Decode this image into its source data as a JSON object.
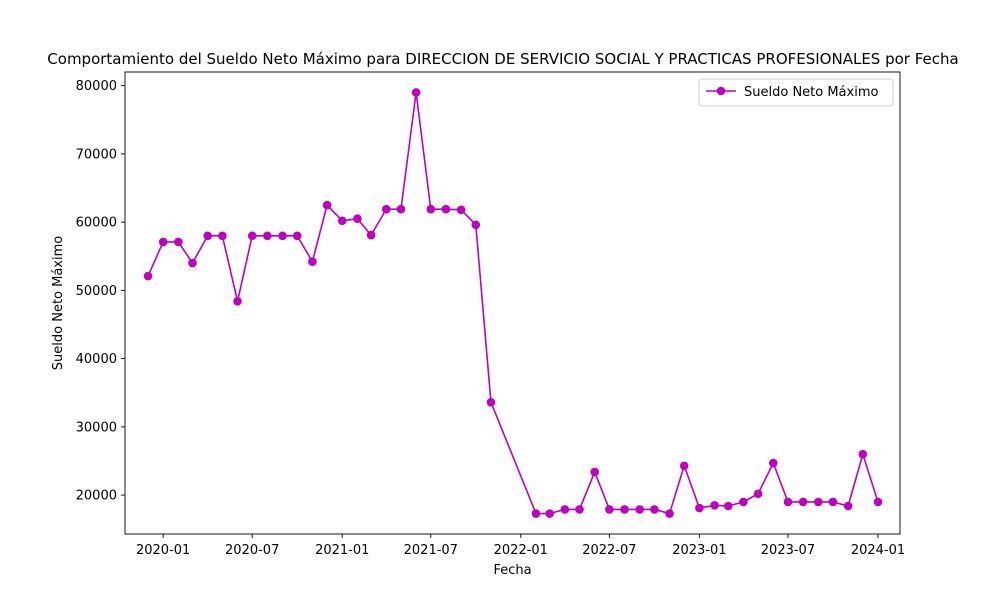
{
  "chart_data": {
    "type": "line",
    "title": "Comportamiento del Sueldo Neto Máximo para DIRECCION DE SERVICIO SOCIAL Y PRACTICAS PROFESIONALES por Fecha",
    "xlabel": "Fecha",
    "ylabel": "Sueldo Neto Máximo",
    "x_tick_labels": [
      "2020-01",
      "2020-07",
      "2021-01",
      "2021-07",
      "2022-01",
      "2022-07",
      "2023-01",
      "2023-07",
      "2024-01"
    ],
    "y_ticks": [
      20000,
      30000,
      40000,
      50000,
      60000,
      70000,
      80000
    ],
    "xlim": [
      "2019-10-15",
      "2024-02-15"
    ],
    "ylim": [
      14300,
      82000
    ],
    "grid": false,
    "legend_position": "upper right",
    "series": [
      {
        "name": "Sueldo Neto Máximo",
        "color": "#bf00bf",
        "marker": "circle",
        "x": [
          "2019-12-01",
          "2020-01-01",
          "2020-02-01",
          "2020-03-01",
          "2020-04-01",
          "2020-05-01",
          "2020-06-01",
          "2020-07-01",
          "2020-08-01",
          "2020-09-01",
          "2020-10-01",
          "2020-11-01",
          "2020-12-01",
          "2021-01-01",
          "2021-02-01",
          "2021-03-01",
          "2021-04-01",
          "2021-05-01",
          "2021-06-01",
          "2021-07-01",
          "2021-08-01",
          "2021-09-01",
          "2021-10-01",
          "2021-11-01",
          "2022-02-01",
          "2022-03-01",
          "2022-04-01",
          "2022-05-01",
          "2022-06-01",
          "2022-07-01",
          "2022-08-01",
          "2022-09-01",
          "2022-10-01",
          "2022-11-01",
          "2022-12-01",
          "2023-01-01",
          "2023-02-01",
          "2023-03-01",
          "2023-04-01",
          "2023-05-01",
          "2023-06-01",
          "2023-07-01",
          "2023-08-01",
          "2023-09-01",
          "2023-10-01",
          "2023-11-01",
          "2023-12-01",
          "2024-01-01"
        ],
        "values": [
          52100,
          57100,
          57100,
          54000,
          58000,
          58000,
          48400,
          58000,
          58000,
          58000,
          58000,
          54200,
          62500,
          60200,
          60500,
          58100,
          61900,
          61900,
          79000,
          61900,
          61900,
          61800,
          59600,
          33600,
          17300,
          17300,
          17900,
          17900,
          23400,
          17900,
          17900,
          17900,
          17900,
          17300,
          24300,
          18100,
          18500,
          18400,
          19000,
          20200,
          24700,
          19000,
          19000,
          19000,
          19000,
          18400,
          26000,
          19000
        ]
      }
    ]
  }
}
